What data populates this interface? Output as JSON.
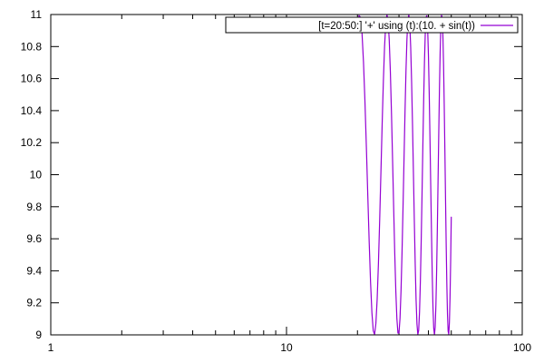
{
  "chart_data": {
    "type": "line",
    "title": "",
    "xlabel": "",
    "ylabel": "",
    "x_scale": "log",
    "xlim": [
      1,
      100
    ],
    "ylim": [
      9,
      11
    ],
    "x_ticks": [
      {
        "value": 1,
        "label": "1"
      },
      {
        "value": 10,
        "label": "10"
      },
      {
        "value": 100,
        "label": "100"
      }
    ],
    "y_ticks": [
      {
        "value": 9,
        "label": "9"
      },
      {
        "value": 9.2,
        "label": "9.2"
      },
      {
        "value": 9.4,
        "label": "9.4"
      },
      {
        "value": 9.6,
        "label": "9.6"
      },
      {
        "value": 9.8,
        "label": "9.8"
      },
      {
        "value": 10,
        "label": "10"
      },
      {
        "value": 10.2,
        "label": "10.2"
      },
      {
        "value": 10.4,
        "label": "10.4"
      },
      {
        "value": 10.6,
        "label": "10.6"
      },
      {
        "value": 10.8,
        "label": "10.8"
      },
      {
        "value": 11,
        "label": "11"
      }
    ],
    "grid": false,
    "legend_position": "top-right",
    "series": [
      {
        "name": "[t=20:50:] '+' using (t):(10. + sin(t))",
        "color": "#9400d3",
        "function": "10 + sin(t)",
        "t_range": [
          20,
          50
        ],
        "samples": 100
      }
    ]
  }
}
